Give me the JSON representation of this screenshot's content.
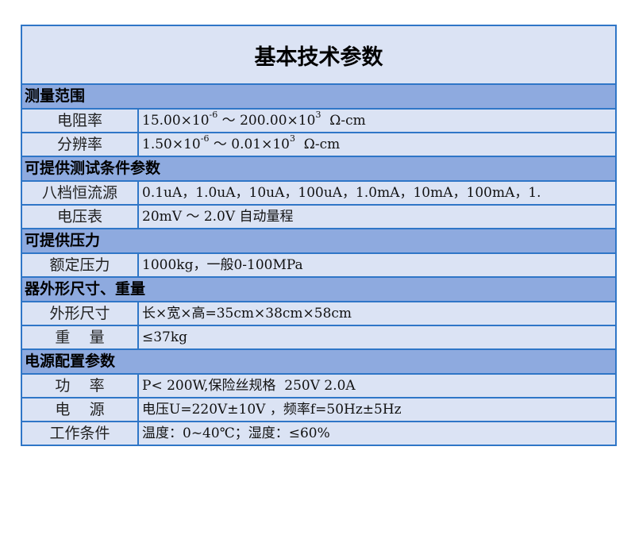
{
  "title": "基本技术参数",
  "colors": {
    "border": "#2f76c7",
    "section_bg": "#8eaadf",
    "row_bg": "#dbe3f4"
  },
  "sections": [
    {
      "header": "测量范围",
      "rows": [
        {
          "label": "电阻率",
          "val_a": "15.00×10",
          "exp1": "-6",
          "val_b": " ～ 200.00×10",
          "exp2": "3",
          "val_c": "  Ω-cm"
        },
        {
          "label": "分辨率",
          "val_a": "1.50×10",
          "exp1": "-6",
          "val_b": " ～ 0.01×10",
          "exp2": "3",
          "val_c": "  Ω-cm"
        }
      ]
    },
    {
      "header": "可提供测试条件参数",
      "rows": [
        {
          "label": "八档恒流源",
          "value": "0.1uA，1.0uA，10uA，100uA，1.0mA，10mA，100mA，1."
        },
        {
          "label": "电压表",
          "value": "20mV ～ 2.0V 自动量程"
        }
      ]
    },
    {
      "header": "可提供压力",
      "rows": [
        {
          "label": "额定压力",
          "value": "1000kg，一般0-100MPa"
        }
      ]
    },
    {
      "header": "器外形尺寸、重量",
      "rows": [
        {
          "label": "外形尺寸",
          "value": "长×宽×高=35cm×38cm×58cm"
        },
        {
          "label": "重    量",
          "value": "≤37kg"
        }
      ]
    },
    {
      "header": "电源配置参数",
      "rows": [
        {
          "label": "功    率",
          "value": "P< 200W,保险丝规格  250V 2.0A"
        },
        {
          "label": "电    源",
          "value": "电压U=220V±10V ，频率f=50Hz±5Hz"
        },
        {
          "label": "工作条件",
          "value": "温度：0~40℃；湿度：≤60%"
        }
      ]
    }
  ]
}
